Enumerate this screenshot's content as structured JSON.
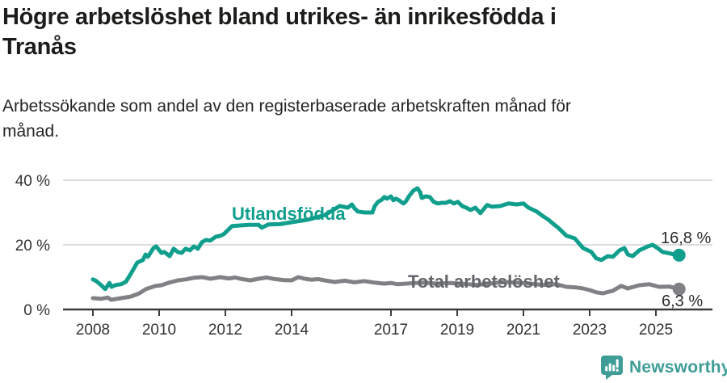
{
  "header": {
    "title": {
      "line1": "Högre arbetslöshet bland utrikes- än inrikesfödda i",
      "line2": "Tranås"
    },
    "subtitle": {
      "line1": "Arbetssökande som andel av den registerbaserade arbetskraften månad för",
      "line2": "månad."
    }
  },
  "footer": {
    "brand": "Newsworthy",
    "logo_icon": "newsworthy-speech-bubble-bar-chart-icon"
  },
  "colors": {
    "accent_teal": "#109e8d",
    "logo_teal": "#3e9d96",
    "line_gray": "#7f8184",
    "label_gray": "#63666a",
    "value_label": "#2b2b2b",
    "axis_text": "#333333",
    "gridline": "#dcdcdc",
    "axis_line": "#3c3c3c"
  },
  "chart_data": {
    "type": "line",
    "title": "Högre arbetslöshet bland utrikes- än inrikesfödda i Tranås",
    "subtitle": "Arbetssökande som andel av den registerbaserade arbetskraften månad för månad.",
    "xlabel": "",
    "ylabel": "",
    "grid": "horizontal",
    "legend_position": "inline-labels",
    "x_axis": {
      "range": [
        2007.6,
        2026.4
      ],
      "ticks": [
        2008,
        2010,
        2012,
        2014,
        2017,
        2019,
        2021,
        2023,
        2025
      ],
      "tick_labels": [
        "2008",
        "2010",
        "2012",
        "2014",
        "2017",
        "2019",
        "2021",
        "2023",
        "2025"
      ]
    },
    "y_axis": {
      "range": [
        0,
        42
      ],
      "ticks": [
        0,
        20,
        40
      ],
      "tick_labels": [
        "0 %",
        "20 %",
        "40 %"
      ],
      "gridlines": [
        20,
        40
      ]
    },
    "series": [
      {
        "name": "Utlandsfödda",
        "color": "#109e8d",
        "label_color": "#109e8d",
        "end_value": 16.8,
        "end_label": "16,8 %",
        "points": [
          [
            2008.0,
            9.3
          ],
          [
            2008.1,
            8.8
          ],
          [
            2008.25,
            7.5
          ],
          [
            2008.37,
            6.3
          ],
          [
            2008.5,
            8.2
          ],
          [
            2008.56,
            7.0
          ],
          [
            2008.7,
            7.6
          ],
          [
            2008.85,
            7.8
          ],
          [
            2009.0,
            8.6
          ],
          [
            2009.17,
            11.5
          ],
          [
            2009.34,
            14.5
          ],
          [
            2009.51,
            15.3
          ],
          [
            2009.59,
            17.0
          ],
          [
            2009.66,
            16.3
          ],
          [
            2009.83,
            19.0
          ],
          [
            2009.91,
            19.5
          ],
          [
            2010.07,
            17.5
          ],
          [
            2010.15,
            17.8
          ],
          [
            2010.32,
            16.5
          ],
          [
            2010.44,
            18.8
          ],
          [
            2010.56,
            17.8
          ],
          [
            2010.68,
            17.5
          ],
          [
            2010.8,
            18.8
          ],
          [
            2010.93,
            18.3
          ],
          [
            2011.05,
            19.5
          ],
          [
            2011.17,
            18.8
          ],
          [
            2011.29,
            20.8
          ],
          [
            2011.41,
            21.5
          ],
          [
            2011.54,
            21.3
          ],
          [
            2011.71,
            22.5
          ],
          [
            2011.85,
            22.8
          ],
          [
            2011.95,
            23.3
          ],
          [
            2012.2,
            25.8
          ],
          [
            2012.45,
            26.0
          ],
          [
            2012.7,
            26.2
          ],
          [
            2013.0,
            26.2
          ],
          [
            2013.1,
            25.3
          ],
          [
            2013.3,
            26.3
          ],
          [
            2013.65,
            26.4
          ],
          [
            2014.0,
            27.0
          ],
          [
            2014.5,
            27.8
          ],
          [
            2015.0,
            29.2
          ],
          [
            2015.45,
            32.0
          ],
          [
            2015.7,
            31.5
          ],
          [
            2015.82,
            32.5
          ],
          [
            2015.9,
            31.3
          ],
          [
            2016.0,
            30.3
          ],
          [
            2016.2,
            30.0
          ],
          [
            2016.44,
            30.0
          ],
          [
            2016.51,
            32.0
          ],
          [
            2016.61,
            33.3
          ],
          [
            2016.73,
            34.0
          ],
          [
            2016.8,
            34.8
          ],
          [
            2016.88,
            34.3
          ],
          [
            2017.0,
            35.0
          ],
          [
            2017.07,
            33.8
          ],
          [
            2017.15,
            34.3
          ],
          [
            2017.24,
            33.8
          ],
          [
            2017.37,
            32.8
          ],
          [
            2017.44,
            33.3
          ],
          [
            2017.56,
            35.3
          ],
          [
            2017.68,
            36.8
          ],
          [
            2017.8,
            37.5
          ],
          [
            2017.88,
            36.3
          ],
          [
            2017.93,
            34.5
          ],
          [
            2018.05,
            35.0
          ],
          [
            2018.17,
            34.8
          ],
          [
            2018.29,
            33.3
          ],
          [
            2018.41,
            32.8
          ],
          [
            2018.54,
            33.0
          ],
          [
            2018.66,
            33.0
          ],
          [
            2018.78,
            33.5
          ],
          [
            2018.9,
            32.8
          ],
          [
            2019.02,
            33.3
          ],
          [
            2019.15,
            32.0
          ],
          [
            2019.27,
            31.5
          ],
          [
            2019.4,
            30.8
          ],
          [
            2019.55,
            31.5
          ],
          [
            2019.7,
            29.8
          ],
          [
            2019.9,
            32.3
          ],
          [
            2020.05,
            31.8
          ],
          [
            2020.3,
            32.0
          ],
          [
            2020.55,
            32.8
          ],
          [
            2020.8,
            32.5
          ],
          [
            2021.0,
            32.8
          ],
          [
            2021.15,
            31.5
          ],
          [
            2021.4,
            30.3
          ],
          [
            2021.6,
            28.8
          ],
          [
            2021.75,
            27.8
          ],
          [
            2021.9,
            26.5
          ],
          [
            2022.05,
            25.3
          ],
          [
            2022.3,
            22.8
          ],
          [
            2022.55,
            22.0
          ],
          [
            2022.8,
            19.0
          ],
          [
            2023.05,
            17.8
          ],
          [
            2023.2,
            15.8
          ],
          [
            2023.35,
            15.3
          ],
          [
            2023.55,
            16.5
          ],
          [
            2023.7,
            16.3
          ],
          [
            2023.9,
            18.3
          ],
          [
            2024.05,
            19.0
          ],
          [
            2024.15,
            17.0
          ],
          [
            2024.3,
            16.5
          ],
          [
            2024.5,
            18.3
          ],
          [
            2024.75,
            19.5
          ],
          [
            2024.9,
            20.0
          ],
          [
            2025.05,
            19.0
          ],
          [
            2025.2,
            17.8
          ],
          [
            2025.4,
            17.4
          ],
          [
            2025.55,
            17.0
          ],
          [
            2025.7,
            16.8
          ]
        ]
      },
      {
        "name": "Total arbetslöshet",
        "color": "#7f8184",
        "label_color": "#63666a",
        "end_value": 6.3,
        "end_label": "6,3 %",
        "points": [
          [
            2008.0,
            3.5
          ],
          [
            2008.25,
            3.3
          ],
          [
            2008.45,
            3.7
          ],
          [
            2008.55,
            3.0
          ],
          [
            2008.85,
            3.5
          ],
          [
            2009.15,
            4.0
          ],
          [
            2009.4,
            5.0
          ],
          [
            2009.6,
            6.3
          ],
          [
            2009.9,
            7.3
          ],
          [
            2010.07,
            7.5
          ],
          [
            2010.3,
            8.3
          ],
          [
            2010.56,
            9.0
          ],
          [
            2010.8,
            9.3
          ],
          [
            2011.05,
            9.8
          ],
          [
            2011.3,
            10.0
          ],
          [
            2011.55,
            9.5
          ],
          [
            2011.85,
            10.0
          ],
          [
            2012.1,
            9.6
          ],
          [
            2012.3,
            9.9
          ],
          [
            2012.5,
            9.4
          ],
          [
            2012.75,
            9.0
          ],
          [
            2013.0,
            9.5
          ],
          [
            2013.25,
            9.9
          ],
          [
            2013.5,
            9.4
          ],
          [
            2013.75,
            9.1
          ],
          [
            2014.0,
            9.0
          ],
          [
            2014.2,
            10.0
          ],
          [
            2014.4,
            9.5
          ],
          [
            2014.6,
            9.2
          ],
          [
            2014.8,
            9.4
          ],
          [
            2015.0,
            9.0
          ],
          [
            2015.3,
            8.5
          ],
          [
            2015.6,
            8.9
          ],
          [
            2015.9,
            8.4
          ],
          [
            2016.2,
            8.8
          ],
          [
            2016.5,
            8.3
          ],
          [
            2016.8,
            8.0
          ],
          [
            2017.0,
            8.2
          ],
          [
            2017.2,
            7.8
          ],
          [
            2017.6,
            8.1
          ],
          [
            2018.0,
            8.3
          ],
          [
            2018.4,
            8.0
          ],
          [
            2018.8,
            8.2
          ],
          [
            2019.2,
            7.9
          ],
          [
            2019.6,
            7.6
          ],
          [
            2020.0,
            8.0
          ],
          [
            2020.4,
            8.5
          ],
          [
            2020.8,
            8.3
          ],
          [
            2021.2,
            8.0
          ],
          [
            2021.6,
            7.6
          ],
          [
            2022.0,
            7.8
          ],
          [
            2022.3,
            7.0
          ],
          [
            2022.6,
            6.8
          ],
          [
            2022.8,
            6.5
          ],
          [
            2023.0,
            6.0
          ],
          [
            2023.2,
            5.3
          ],
          [
            2023.4,
            5.0
          ],
          [
            2023.7,
            5.8
          ],
          [
            2023.95,
            7.3
          ],
          [
            2024.15,
            6.5
          ],
          [
            2024.5,
            7.5
          ],
          [
            2024.8,
            7.8
          ],
          [
            2025.1,
            7.0
          ],
          [
            2025.4,
            7.1
          ],
          [
            2025.7,
            6.3
          ]
        ]
      }
    ]
  }
}
